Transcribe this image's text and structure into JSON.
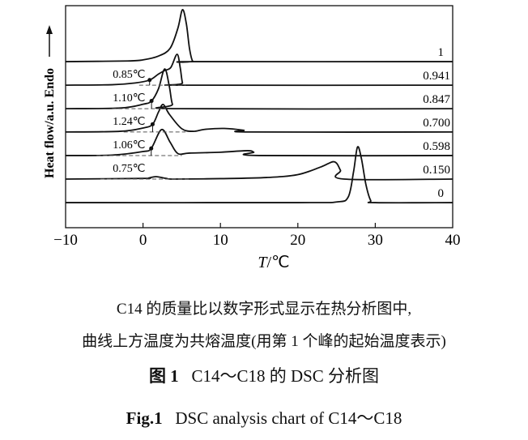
{
  "chart_data": {
    "type": "line",
    "xlabel_italic": "T",
    "xlabel_unit": "/℃",
    "ylabel": "Heat flow/a.u. Endo",
    "xlim": [
      -10,
      40
    ],
    "xticks": [
      "−10",
      "0",
      "10",
      "20",
      "30",
      "40"
    ],
    "xtick_values": [
      -10,
      0,
      10,
      20,
      30,
      40
    ],
    "grid": false,
    "series": [
      {
        "name": "1",
        "offset": 74.8,
        "points": [
          [
            -10,
            0
          ],
          [
            -2,
            0.3
          ],
          [
            0,
            0.8
          ],
          [
            2,
            2.5
          ],
          [
            3.5,
            6
          ],
          [
            4.5,
            15
          ],
          [
            5.1,
            23.4
          ],
          [
            5.6,
            17
          ],
          [
            6,
            6
          ],
          [
            6.4,
            0.3
          ],
          [
            7,
            0
          ],
          [
            40,
            0
          ]
        ]
      },
      {
        "name": "0.941",
        "offset": 64.2,
        "onset": 0.85,
        "onset_label": "0.85℃",
        "dashed": [
          -0.5,
          5.5
        ],
        "points": [
          [
            -10,
            0
          ],
          [
            -4,
            0.2
          ],
          [
            -1,
            1
          ],
          [
            0.85,
            2.3
          ],
          [
            2,
            5
          ],
          [
            2.8,
            6.6
          ],
          [
            3.6,
            8
          ],
          [
            4.4,
            13.9
          ],
          [
            4.8,
            8
          ],
          [
            5.1,
            1
          ],
          [
            5.5,
            0
          ],
          [
            40,
            0
          ]
        ]
      },
      {
        "name": "0.847",
        "offset": 53.6,
        "onset": 1.1,
        "onset_label": "1.10℃",
        "dashed": [
          -4,
          3
        ],
        "points": [
          [
            -10,
            0
          ],
          [
            -3,
            0.3
          ],
          [
            0,
            2
          ],
          [
            1.1,
            3.5
          ],
          [
            2,
            9
          ],
          [
            2.8,
            17.9
          ],
          [
            3.4,
            10
          ],
          [
            3.8,
            2
          ],
          [
            4.5,
            0
          ],
          [
            40,
            0
          ]
        ]
      },
      {
        "name": "0.700",
        "offset": 43.1,
        "onset": 1.24,
        "onset_label": "1.24℃",
        "dashed": [
          -2.5,
          5.5
        ],
        "points": [
          [
            -10,
            0
          ],
          [
            -3,
            0.3
          ],
          [
            0,
            1.8
          ],
          [
            1.24,
            3.5
          ],
          [
            2,
            9
          ],
          [
            2.6,
            12.4
          ],
          [
            3.4,
            8
          ],
          [
            5,
            1.5
          ],
          [
            6.5,
            0.3
          ],
          [
            8,
            1.2
          ],
          [
            10.5,
            1.6
          ],
          [
            13,
            0.8
          ],
          [
            14,
            0
          ],
          [
            40,
            0
          ]
        ]
      },
      {
        "name": "0.598",
        "offset": 32.5,
        "onset": 1.06,
        "onset_label": "1.06℃",
        "dashed": [
          -6,
          5
        ],
        "points": [
          [
            -10,
            0
          ],
          [
            -4,
            0.2
          ],
          [
            0,
            1.8
          ],
          [
            1.06,
            3.2
          ],
          [
            2.4,
            11.7
          ],
          [
            3.5,
            6
          ],
          [
            4.5,
            0.9
          ],
          [
            6,
            1.1
          ],
          [
            10,
            1.5
          ],
          [
            13.5,
            2.2
          ],
          [
            14.3,
            1.5
          ],
          [
            15,
            0
          ],
          [
            40,
            0
          ]
        ]
      },
      {
        "name": "0.150",
        "offset": 21.9,
        "onset_label": "0.75℃",
        "dashed": [
          -5.5,
          6
        ],
        "points": [
          [
            -10,
            0
          ],
          [
            0,
            0.3
          ],
          [
            0.75,
            0.5
          ],
          [
            1.7,
            1.1
          ],
          [
            3,
            0.3
          ],
          [
            4,
            0
          ],
          [
            10,
            0.2
          ],
          [
            16,
            0.7
          ],
          [
            20,
            2
          ],
          [
            23,
            5.5
          ],
          [
            24.7,
            7.8
          ],
          [
            25.5,
            4
          ],
          [
            26,
            0
          ],
          [
            40,
            0
          ]
        ]
      },
      {
        "name": "0",
        "offset": 11.3,
        "points": [
          [
            -10,
            0
          ],
          [
            20,
            0
          ],
          [
            25,
            0.3
          ],
          [
            26.5,
            2.5
          ],
          [
            27.2,
            14
          ],
          [
            27.7,
            25
          ],
          [
            28.2,
            20
          ],
          [
            28.8,
            8
          ],
          [
            29.4,
            1
          ],
          [
            30,
            0
          ],
          [
            40,
            0
          ]
        ]
      }
    ]
  },
  "captions": {
    "line1": "C14 的质量比以数字形式显示在热分析图中,",
    "line2": "曲线上方温度为共熔温度(用第 1 个峰的起始温度表示)",
    "fig_cn_label": "图 1",
    "fig_cn_title": "C14～C18 的 DSC 分析图",
    "fig_en_label": "Fig.1",
    "fig_en_title": "DSC analysis chart of C14～C18"
  }
}
